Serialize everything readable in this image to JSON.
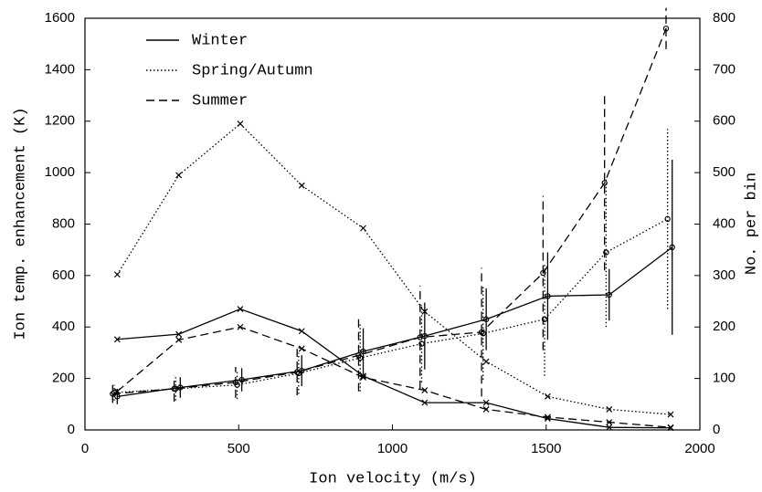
{
  "chart_data": {
    "type": "line",
    "x_label": "Ion velocity (m/s)",
    "y_label": "Ion temp. enhancement (K)",
    "y2_label": "No. per bin",
    "xlim": [
      0,
      2000
    ],
    "xticks": [
      0,
      500,
      1000,
      1500,
      2000
    ],
    "ylim": [
      0,
      1600
    ],
    "yticks": [
      0,
      200,
      400,
      600,
      800,
      1000,
      1200,
      1400,
      1600
    ],
    "y2lim": [
      0,
      800
    ],
    "y2ticks": [
      0,
      100,
      200,
      300,
      400,
      500,
      600,
      700,
      800
    ],
    "legend": "upper left",
    "color": "#000000",
    "series": [
      {
        "name": "Winter",
        "linestyle": "solid",
        "marker": "circle",
        "x": [
          105,
          310,
          510,
          705,
          905,
          1105,
          1305,
          1505,
          1705,
          1910
        ],
        "values": [
          130,
          165,
          195,
          230,
          305,
          365,
          430,
          520,
          525,
          710
        ],
        "errors": [
          30,
          40,
          45,
          60,
          90,
          130,
          120,
          170,
          100,
          340
        ]
      },
      {
        "name": "Spring/Autumn",
        "linestyle": "dotted",
        "marker": "circle",
        "x": [
          95,
          295,
          495,
          695,
          895,
          1095,
          1295,
          1495,
          1695,
          1895
        ],
        "values": [
          145,
          160,
          175,
          220,
          280,
          335,
          375,
          430,
          690,
          820
        ],
        "errors": [
          30,
          45,
          55,
          80,
          130,
          150,
          180,
          220,
          290,
          350
        ]
      },
      {
        "name": "Summer",
        "linestyle": "dashed",
        "marker": "circle",
        "x": [
          90,
          290,
          490,
          690,
          890,
          1090,
          1290,
          1490,
          1690,
          1890
        ],
        "values": [
          140,
          160,
          185,
          225,
          290,
          360,
          380,
          610,
          960,
          1560
        ],
        "errors": [
          35,
          50,
          60,
          90,
          140,
          200,
          250,
          300,
          340,
          80
        ]
      },
      {
        "linestyle": "solid",
        "marker": "x",
        "axis": "y2",
        "x": [
          105,
          305,
          505,
          705,
          905,
          1105,
          1305,
          1505,
          1705,
          1905
        ],
        "values": [
          176,
          186,
          235,
          192,
          105,
          53,
          53,
          22,
          5,
          4
        ]
      },
      {
        "linestyle": "dotted",
        "marker": "x",
        "axis": "y2",
        "x": [
          105,
          305,
          505,
          705,
          905,
          1105,
          1305,
          1505,
          1705,
          1905
        ],
        "values": [
          302,
          495,
          595,
          475,
          392,
          230,
          133,
          65,
          40,
          30
        ]
      },
      {
        "linestyle": "dashed",
        "marker": "x",
        "axis": "y2",
        "x": [
          105,
          305,
          505,
          705,
          905,
          1105,
          1305,
          1505,
          1705,
          1905
        ],
        "values": [
          75,
          175,
          200,
          158,
          102,
          77,
          40,
          25,
          15,
          5
        ]
      }
    ]
  }
}
